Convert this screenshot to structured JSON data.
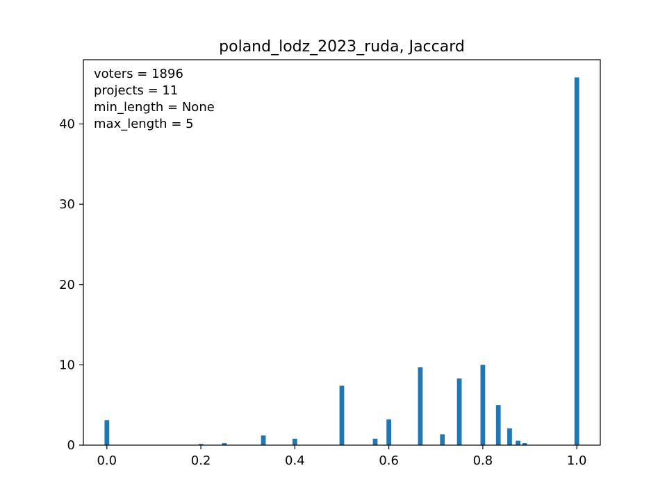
{
  "chart_data": {
    "type": "bar",
    "title": "poland_lodz_2023_ruda, Jaccard",
    "xlabel": "",
    "ylabel": "",
    "xlim": [
      -0.05,
      1.05
    ],
    "ylim": [
      0,
      48
    ],
    "x_ticks": [
      0.0,
      0.2,
      0.4,
      0.6,
      0.8,
      1.0
    ],
    "x_tick_labels": [
      "0.0",
      "0.2",
      "0.4",
      "0.6",
      "0.8",
      "1.0"
    ],
    "y_ticks": [
      0,
      10,
      20,
      30,
      40
    ],
    "y_tick_labels": [
      "0",
      "10",
      "20",
      "30",
      "40"
    ],
    "bar_width": 0.01,
    "color": "#1f77b4",
    "grid": false,
    "annotation_lines": [
      "voters = 1896",
      "projects = 11",
      "min_length = None",
      "max_length = 5"
    ],
    "x": [
      0.0,
      0.2,
      0.25,
      0.333,
      0.4,
      0.5,
      0.571,
      0.6,
      0.667,
      0.714,
      0.75,
      0.8,
      0.833,
      0.857,
      0.875,
      0.889,
      1.0
    ],
    "values": [
      3.1,
      0.15,
      0.25,
      1.2,
      0.8,
      7.4,
      0.8,
      3.2,
      9.7,
      1.35,
      8.3,
      10.0,
      5.0,
      2.1,
      0.55,
      0.25,
      45.8
    ]
  }
}
